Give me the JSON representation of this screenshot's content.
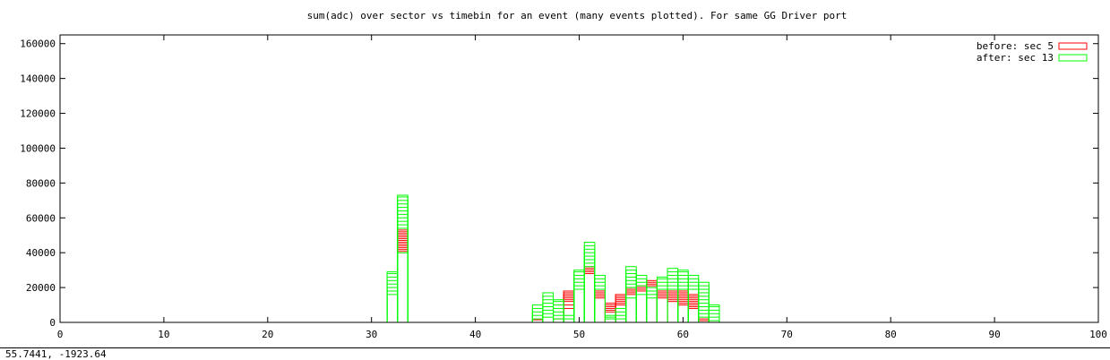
{
  "chart_data": {
    "type": "bar",
    "title": "sum(adc) over sector vs timebin for an event (many events plotted).  For same GG Driver port",
    "xlabel": "",
    "ylabel": "",
    "xlim": [
      0,
      100
    ],
    "ylim": [
      0,
      165000
    ],
    "x_ticks": [
      0,
      10,
      20,
      30,
      40,
      50,
      60,
      70,
      80,
      90,
      100
    ],
    "y_ticks": [
      0,
      20000,
      40000,
      60000,
      80000,
      100000,
      120000,
      140000,
      160000
    ],
    "grid": false,
    "legend_position": "top-right",
    "series": [
      {
        "name": "before: sec 5",
        "color": "#ff0000",
        "bars": [
          {
            "x": 33,
            "values": [
              40000,
              41000,
              42000,
              43000,
              44000,
              45000,
              46000,
              47000,
              48000,
              49000,
              50000,
              51000,
              52000,
              53000
            ]
          },
          {
            "x": 46,
            "values": [
              1500
            ]
          },
          {
            "x": 48,
            "values": [
              2000
            ]
          },
          {
            "x": 49,
            "values": [
              8000,
              10000,
              12000,
              13000,
              14000,
              15000,
              16000,
              17000,
              18000
            ]
          },
          {
            "x": 51,
            "values": [
              28000,
              29000,
              30000,
              31000,
              32000
            ]
          },
          {
            "x": 52,
            "values": [
              14000,
              15000,
              16000,
              17000,
              18000
            ]
          },
          {
            "x": 53,
            "values": [
              6000,
              7000,
              8000,
              9000,
              10000,
              11000
            ]
          },
          {
            "x": 54,
            "values": [
              10000,
              11000,
              12000,
              13000,
              14000,
              15000,
              16000
            ]
          },
          {
            "x": 55,
            "values": [
              16000,
              17000,
              18000,
              19000,
              20000
            ]
          },
          {
            "x": 56,
            "values": [
              18000,
              19000,
              20000,
              21000
            ]
          },
          {
            "x": 57,
            "values": [
              20000,
              21000,
              22000,
              23000,
              24000
            ]
          },
          {
            "x": 58,
            "values": [
              14000,
              15000,
              16000,
              17000,
              18000
            ]
          },
          {
            "x": 59,
            "values": [
              12000,
              13000,
              14000,
              15000,
              16000,
              17000,
              18000
            ]
          },
          {
            "x": 60,
            "values": [
              10000,
              11000,
              12000,
              13000,
              14000,
              15000,
              16000,
              17000,
              18000
            ]
          },
          {
            "x": 61,
            "values": [
              8000,
              9000,
              10000,
              11000,
              12000,
              13000,
              14000,
              15000,
              16000
            ]
          },
          {
            "x": 62,
            "values": [
              1000,
              2000
            ]
          }
        ]
      },
      {
        "name": "after: sec 13",
        "color": "#00ff00",
        "bars": [
          {
            "x": 32,
            "values": [
              16000,
              18000,
              20000,
              22000,
              24000,
              26000,
              28000,
              29000
            ]
          },
          {
            "x": 33,
            "values": [
              40000,
              54000,
              56000,
              58000,
              60000,
              62000,
              64000,
              66000,
              68000,
              70000,
              72000,
              73000
            ]
          },
          {
            "x": 46,
            "values": [
              2000,
              4000,
              6000,
              8000,
              10000
            ]
          },
          {
            "x": 47,
            "values": [
              3000,
              5000,
              7000,
              9000,
              11000,
              13000,
              15000,
              17000
            ]
          },
          {
            "x": 48,
            "values": [
              2000,
              4000,
              6000,
              8000,
              10000,
              12000,
              13000
            ]
          },
          {
            "x": 49,
            "values": [
              2000,
              4000
            ]
          },
          {
            "x": 50,
            "values": [
              19000,
              21000,
              23000,
              25000,
              27000,
              29000,
              30000
            ]
          },
          {
            "x": 51,
            "values": [
              32000,
              34000,
              36000,
              38000,
              40000,
              42000,
              44000,
              46000
            ]
          },
          {
            "x": 52,
            "values": [
              19000,
              21000,
              23000,
              25000,
              27000
            ]
          },
          {
            "x": 53,
            "values": [
              2000,
              3000,
              4000
            ]
          },
          {
            "x": 54,
            "values": [
              2000,
              4000,
              6000,
              8000
            ]
          },
          {
            "x": 55,
            "values": [
              14000,
              20000,
              22000,
              24000,
              26000,
              28000,
              30000,
              32000
            ]
          },
          {
            "x": 56,
            "values": [
              16000,
              21000,
              23000,
              25000,
              27000
            ]
          },
          {
            "x": 57,
            "values": [
              14000,
              16000,
              18000,
              20000
            ]
          },
          {
            "x": 58,
            "values": [
              19000,
              21000,
              23000,
              25000,
              26000
            ]
          },
          {
            "x": 59,
            "values": [
              19000,
              21000,
              23000,
              25000,
              27000,
              29000,
              31000
            ]
          },
          {
            "x": 60,
            "values": [
              19000,
              21000,
              23000,
              25000,
              27000,
              29000,
              30000
            ]
          },
          {
            "x": 61,
            "values": [
              19000,
              21000,
              23000,
              25000,
              27000
            ]
          },
          {
            "x": 62,
            "values": [
              3000,
              5000,
              7000,
              9000,
              11000,
              13000,
              15000,
              17000,
              19000,
              21000,
              23000
            ]
          },
          {
            "x": 63,
            "values": [
              1000,
              3000,
              5000,
              7000,
              9000,
              10000
            ]
          }
        ]
      }
    ]
  },
  "status": {
    "coordinates": "55.7441, -1923.64"
  }
}
